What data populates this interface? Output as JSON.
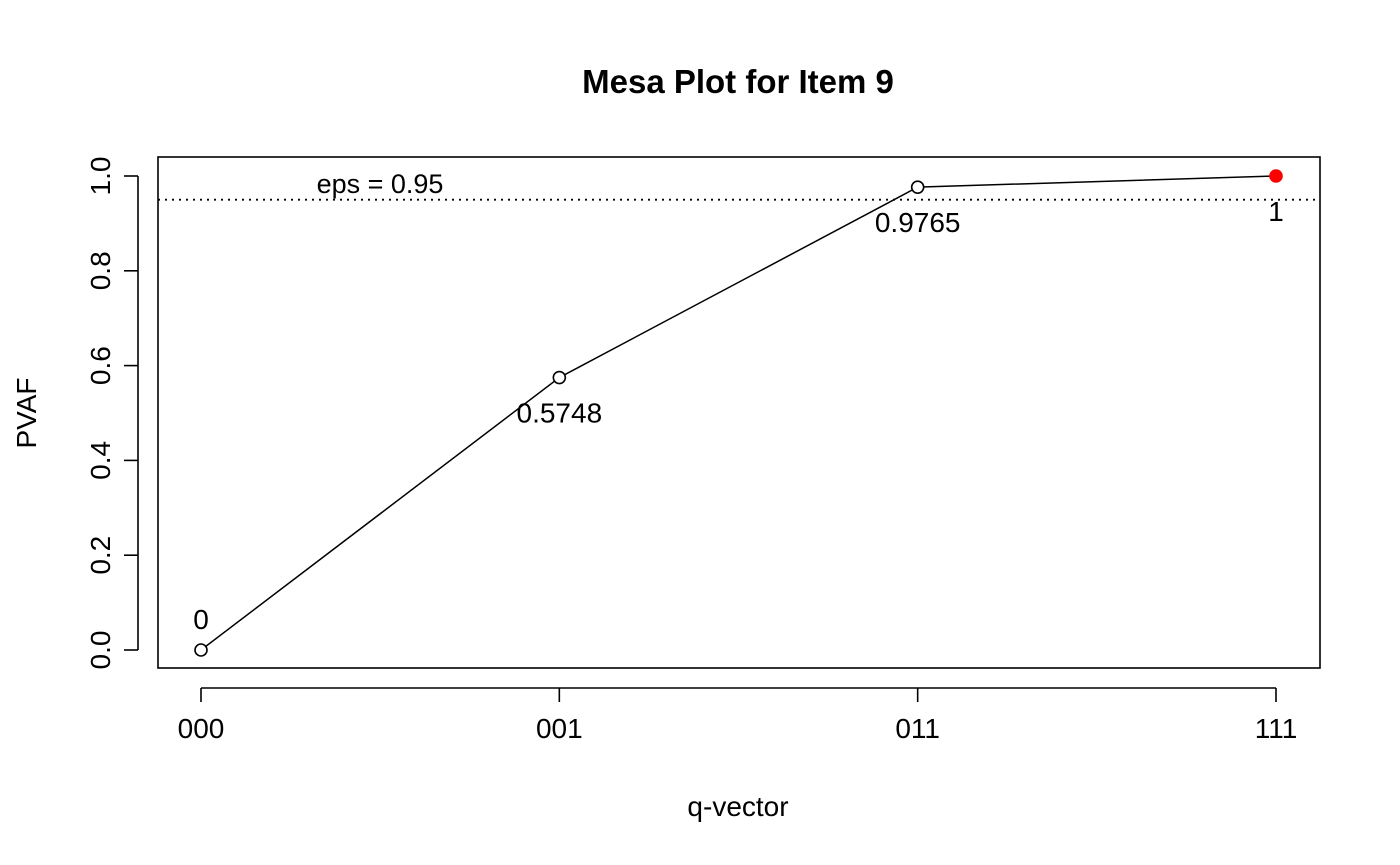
{
  "chart_data": {
    "type": "line",
    "title": "Mesa Plot for Item 9",
    "xlabel": "q-vector",
    "ylabel": "PVAF",
    "categories": [
      "000",
      "001",
      "011",
      "111"
    ],
    "values": [
      0,
      0.5748,
      0.9765,
      1
    ],
    "point_labels": [
      "0",
      "0.5748",
      "0.9765",
      "1"
    ],
    "highlight_index": 3,
    "highlight_color": "#ff0000",
    "line_color": "#000000",
    "ylim": [
      0,
      1
    ],
    "yticks": [
      0.0,
      0.2,
      0.4,
      0.6,
      0.8,
      1.0
    ],
    "ytick_labels": [
      "0.0",
      "0.2",
      "0.4",
      "0.6",
      "0.8",
      "1.0"
    ],
    "eps": {
      "value": 0.95,
      "label": "eps = 0.95",
      "line_style": "dotted"
    },
    "grid": false,
    "legend": "none"
  }
}
